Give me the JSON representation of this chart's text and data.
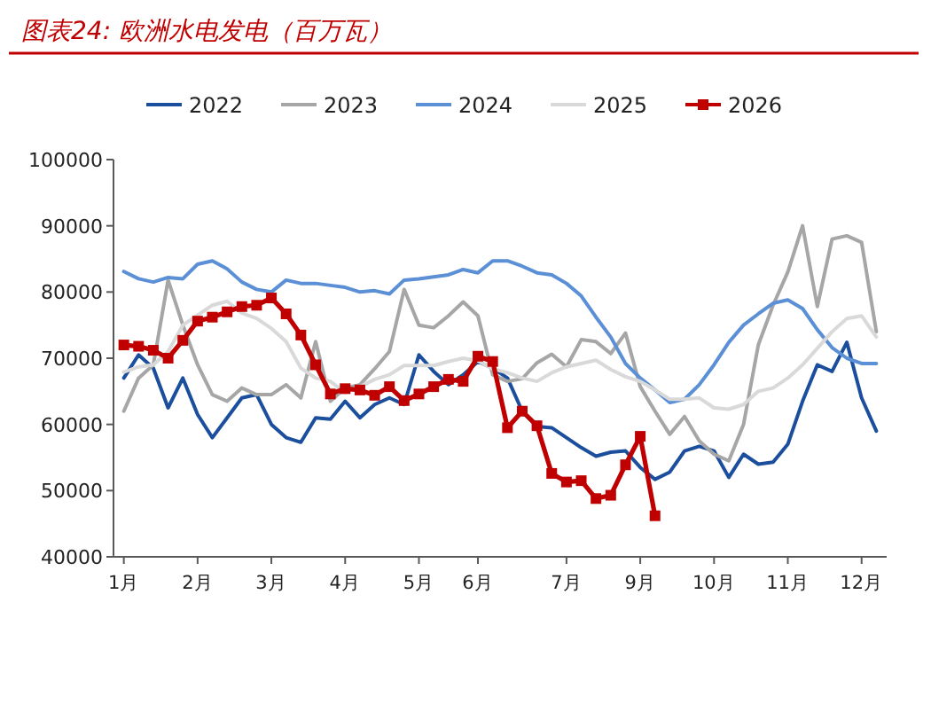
{
  "chart_data": {
    "type": "line",
    "title": "图表24: 欧洲水电发电（百万瓦）",
    "categories": [
      "1月",
      null,
      null,
      null,
      null,
      "2月",
      null,
      null,
      null,
      null,
      "3月",
      null,
      null,
      null,
      null,
      "4月",
      null,
      null,
      null,
      null,
      "5月",
      null,
      null,
      null,
      "6月",
      null,
      null,
      null,
      null,
      null,
      "7月",
      null,
      null,
      null,
      null,
      "9月",
      null,
      null,
      null,
      null,
      "10月",
      null,
      null,
      null,
      null,
      "11月",
      null,
      null,
      null,
      null,
      "12月",
      null
    ],
    "ylim": [
      40000,
      100000
    ],
    "yticks": [
      40000,
      50000,
      60000,
      70000,
      80000,
      90000,
      100000
    ],
    "grid": false,
    "legend": "top",
    "marker": "none",
    "line_style": "solid",
    "series": [
      {
        "name": "2022",
        "color": "#1b4f9e",
        "values": [
          67000,
          70500,
          68500,
          62500,
          67000,
          61500,
          58000,
          61000,
          64000,
          64500,
          60000,
          58000,
          57300,
          61000,
          60800,
          63500,
          61000,
          63000,
          64000,
          63000,
          70500,
          68000,
          66000,
          67500,
          69500,
          68500,
          67000,
          62000,
          59700,
          59500,
          58000,
          56500,
          55200,
          55800,
          56000,
          53500,
          51700,
          52800,
          56000,
          56700,
          56000,
          52000,
          55500,
          54000,
          54300,
          57000,
          63500,
          69000,
          68000,
          72400,
          64000,
          59000
        ]
      },
      {
        "name": "2023",
        "color": "#a6a6a6",
        "values": [
          62000,
          67000,
          69000,
          81800,
          75000,
          69000,
          64500,
          63500,
          65500,
          64500,
          64500,
          66000,
          64000,
          72500,
          63500,
          65500,
          66000,
          68400,
          71000,
          80400,
          75000,
          74600,
          76400,
          78500,
          76400,
          67500,
          66500,
          66900,
          69300,
          70600,
          68700,
          72800,
          72500,
          70700,
          73800,
          65700,
          62000,
          58500,
          61200,
          57500,
          55500,
          54500,
          60000,
          72000,
          78000,
          83000,
          90000,
          77800,
          88000,
          88500,
          87500,
          74000
        ]
      },
      {
        "name": "2024",
        "color": "#5b8fd6",
        "values": [
          83100,
          82000,
          81500,
          82200,
          82000,
          84200,
          84700,
          83500,
          81500,
          80400,
          80000,
          81800,
          81300,
          81300,
          81000,
          80700,
          80000,
          80200,
          79700,
          81800,
          82000,
          82300,
          82600,
          83400,
          82900,
          84700,
          84700,
          83900,
          82900,
          82600,
          81300,
          79400,
          76200,
          73200,
          69200,
          67000,
          65200,
          63300,
          63800,
          66000,
          69000,
          72400,
          75000,
          76700,
          78300,
          78800,
          77500,
          74300,
          71600,
          70000,
          69200,
          69200
        ]
      },
      {
        "name": "2025",
        "color": "#d9d9d9",
        "values": [
          67900,
          68700,
          69000,
          71000,
          75000,
          76500,
          78000,
          78600,
          76800,
          76000,
          74500,
          72500,
          68500,
          67000,
          66500,
          64800,
          65700,
          66800,
          67500,
          68900,
          68900,
          68900,
          69500,
          70000,
          69600,
          68400,
          67800,
          67000,
          66500,
          67800,
          68700,
          69200,
          69700,
          68300,
          67200,
          66500,
          65200,
          63800,
          63800,
          64000,
          62500,
          62300,
          63000,
          65000,
          65500,
          67000,
          69000,
          71500,
          74000,
          76000,
          76400,
          73200
        ]
      },
      {
        "name": "2026",
        "color": "#c00000",
        "marker": "square",
        "values": [
          72000,
          71800,
          71200,
          70000,
          72700,
          75600,
          76200,
          77000,
          77800,
          78000,
          79100,
          76700,
          73500,
          69000,
          64600,
          65400,
          65200,
          64400,
          65700,
          63600,
          64600,
          65700,
          66800,
          66500,
          70300,
          69500,
          59500,
          62000,
          59800,
          52600,
          51300,
          51500,
          48800,
          49300,
          53900,
          58200,
          46200,
          null,
          null,
          null,
          null,
          null,
          null,
          null,
          null,
          null,
          null,
          null,
          null,
          null,
          null,
          null
        ]
      }
    ]
  }
}
